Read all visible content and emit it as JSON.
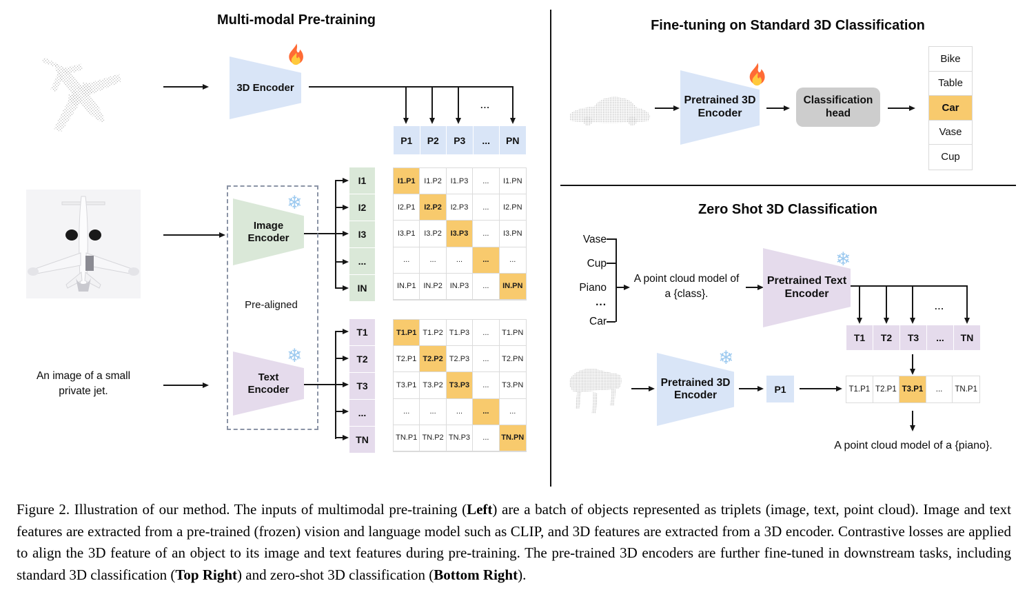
{
  "icons": {
    "snowflake": "❄",
    "flame": "flame"
  },
  "colors": {
    "blue": "#D9E5F7",
    "green": "#DAE8D8",
    "purple": "#E5DBEC",
    "highlight_orange": "#F8CA6D",
    "head_gray": "#CDCDCD"
  },
  "left": {
    "title": "Multi-modal Pre-training",
    "encoder_3d_label": "3D Encoder",
    "image_encoder_label": "Image Encoder",
    "text_encoder_label": "Text Encoder",
    "pre_aligned_label": "Pre-aligned",
    "input_text_line1": "An image of a small",
    "input_text_line2": "private jet.",
    "dots": "...",
    "p_row": [
      "P1",
      "P2",
      "P3",
      "...",
      "PN"
    ],
    "image_labels": [
      "I1",
      "I2",
      "I3",
      "...",
      "IN"
    ],
    "image_matrix": [
      [
        "I1.P1",
        "I1.P2",
        "I1.P3",
        "...",
        "I1.PN"
      ],
      [
        "I2.P1",
        "I2.P2",
        "I2.P3",
        "...",
        "I2.PN"
      ],
      [
        "I3.P1",
        "I3.P2",
        "I3.P3",
        "...",
        "I3.PN"
      ],
      [
        "...",
        "...",
        "...",
        "...",
        "..."
      ],
      [
        "IN.P1",
        "IN.P2",
        "IN.P3",
        "...",
        "IN.PN"
      ]
    ],
    "text_labels": [
      "T1",
      "T2",
      "T3",
      "...",
      "TN"
    ],
    "text_matrix": [
      [
        "T1.P1",
        "T1.P2",
        "T1.P3",
        "...",
        "T1.PN"
      ],
      [
        "T2.P1",
        "T2.P2",
        "T2.P3",
        "...",
        "T2.PN"
      ],
      [
        "T3.P1",
        "T3.P2",
        "T3.P3",
        "...",
        "T3.PN"
      ],
      [
        "...",
        "...",
        "...",
        "...",
        "..."
      ],
      [
        "TN.P1",
        "TN.P2",
        "TN.P3",
        "...",
        "TN.PN"
      ]
    ]
  },
  "top_right": {
    "title": "Fine-tuning on Standard 3D Classification",
    "encoder_label": "Pretrained 3D Encoder",
    "head_label": "Classification head",
    "classes": [
      "Bike",
      "Table",
      "Car",
      "Vase",
      "Cup"
    ],
    "highlight_index": 2
  },
  "zero_shot": {
    "title": "Zero Shot 3D Classification",
    "classes": [
      "Vase",
      "Cup",
      "Piano",
      "...",
      "Car"
    ],
    "prompt_line1": "A point cloud model of",
    "prompt_line2": "a {class}.",
    "text_encoder_label": "Pretrained Text Encoder",
    "encoder_3d_label": "Pretrained 3D Encoder",
    "p_feature": "P1",
    "dots": "...",
    "t_row": [
      "T1",
      "T2",
      "T3",
      "...",
      "TN"
    ],
    "result_row": [
      "T1.P1",
      "T2.P1",
      "T3.P1",
      "...",
      "TN.P1"
    ],
    "result_highlight_index": 2,
    "result_caption": "A point cloud model of a {piano}."
  },
  "caption": {
    "segments": [
      {
        "t": "Figure 2. Illustration of our method. The inputs of multimodal pre-training ("
      },
      {
        "t": "Left",
        "b": true
      },
      {
        "t": ") are a batch of objects represented as triplets (image, text, point cloud). Image and text features are extracted from a pre-trained (frozen) vision and language model such as CLIP, and 3D features are extracted from a 3D encoder. Contrastive losses are applied to align the 3D feature of an object to its image and text features during pre-training. The pre-trained 3D encoders are further fine-tuned in downstream tasks, including standard 3D classification ("
      },
      {
        "t": "Top Right",
        "b": true
      },
      {
        "t": ") and zero-shot 3D classification ("
      },
      {
        "t": "Bottom Right",
        "b": true
      },
      {
        "t": ")."
      }
    ]
  }
}
